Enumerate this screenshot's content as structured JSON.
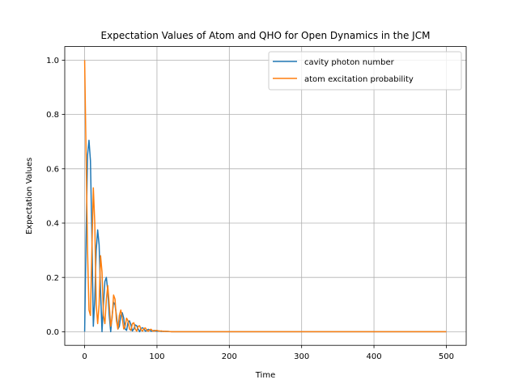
{
  "chart_data": {
    "type": "line",
    "title": "Expectation Values of Atom and QHO for Open Dynamics in the JCM",
    "xlabel": "Time",
    "ylabel": "Expectation Values",
    "xlim": [
      -27.5,
      527.5
    ],
    "ylim": [
      -0.05,
      1.05
    ],
    "xticks": [
      0,
      100,
      200,
      300,
      400,
      500
    ],
    "yticks": [
      0.0,
      0.2,
      0.4,
      0.6,
      0.8,
      1.0
    ],
    "xtick_labels": [
      "0",
      "100",
      "200",
      "300",
      "400",
      "500"
    ],
    "ytick_labels": [
      "0.0",
      "0.2",
      "0.4",
      "0.6",
      "0.8",
      "1.0"
    ],
    "grid": true,
    "legend_position": "top-right",
    "series": [
      {
        "name": "cavity photon number",
        "color": "#1f77b4",
        "x": [
          0,
          2,
          4,
          6,
          8,
          10,
          12,
          14,
          16,
          18,
          20,
          22,
          24,
          26,
          28,
          30,
          32,
          34,
          36,
          38,
          40,
          42,
          44,
          46,
          48,
          50,
          52,
          54,
          56,
          58,
          60,
          62,
          64,
          66,
          68,
          70,
          72,
          74,
          76,
          78,
          80,
          82,
          84,
          86,
          88,
          90,
          92,
          94,
          96,
          98,
          100,
          103,
          106,
          109,
          112,
          116,
          120,
          130,
          140,
          160,
          200,
          300,
          400,
          500
        ],
        "y": [
          0.0,
          0.35,
          0.65,
          0.705,
          0.63,
          0.36,
          0.02,
          0.12,
          0.3,
          0.375,
          0.32,
          0.15,
          0.0,
          0.1,
          0.185,
          0.2,
          0.15,
          0.06,
          0.0,
          0.06,
          0.108,
          0.1,
          0.06,
          0.01,
          0.02,
          0.06,
          0.07,
          0.05,
          0.01,
          0.005,
          0.035,
          0.04,
          0.025,
          0.003,
          0.01,
          0.025,
          0.022,
          0.01,
          0.0,
          0.012,
          0.015,
          0.01,
          0.002,
          0.005,
          0.009,
          0.006,
          0.002,
          0.003,
          0.005,
          0.003,
          0.002,
          0.003,
          0.001,
          0.002,
          0.001,
          0.001,
          0.0,
          0.0,
          0.0,
          0.0,
          0.0,
          0.0,
          0.0,
          0.0
        ]
      },
      {
        "name": "atom excitation probability",
        "color": "#ff7f0e",
        "x": [
          0,
          2,
          4,
          6,
          8,
          10,
          12,
          14,
          16,
          18,
          20,
          22,
          24,
          26,
          28,
          30,
          32,
          34,
          36,
          38,
          40,
          42,
          44,
          46,
          48,
          50,
          52,
          54,
          56,
          58,
          60,
          62,
          64,
          66,
          68,
          70,
          72,
          74,
          76,
          78,
          80,
          82,
          84,
          86,
          88,
          90,
          92,
          94,
          96,
          98,
          100,
          103,
          106,
          109,
          112,
          116,
          120,
          130,
          140,
          160,
          200,
          300,
          400,
          500
        ],
        "y": [
          1.0,
          0.65,
          0.3,
          0.08,
          0.06,
          0.3,
          0.53,
          0.4,
          0.1,
          0.03,
          0.1,
          0.28,
          0.22,
          0.06,
          0.03,
          0.12,
          0.17,
          0.1,
          0.02,
          0.05,
          0.135,
          0.12,
          0.04,
          0.01,
          0.06,
          0.08,
          0.05,
          0.01,
          0.02,
          0.05,
          0.04,
          0.01,
          0.005,
          0.03,
          0.033,
          0.01,
          0.002,
          0.02,
          0.022,
          0.008,
          0.002,
          0.012,
          0.014,
          0.005,
          0.002,
          0.008,
          0.009,
          0.003,
          0.002,
          0.005,
          0.005,
          0.002,
          0.003,
          0.001,
          0.002,
          0.001,
          0.0,
          0.0,
          0.0,
          0.0,
          0.0,
          0.0,
          0.0,
          0.0
        ]
      }
    ]
  }
}
